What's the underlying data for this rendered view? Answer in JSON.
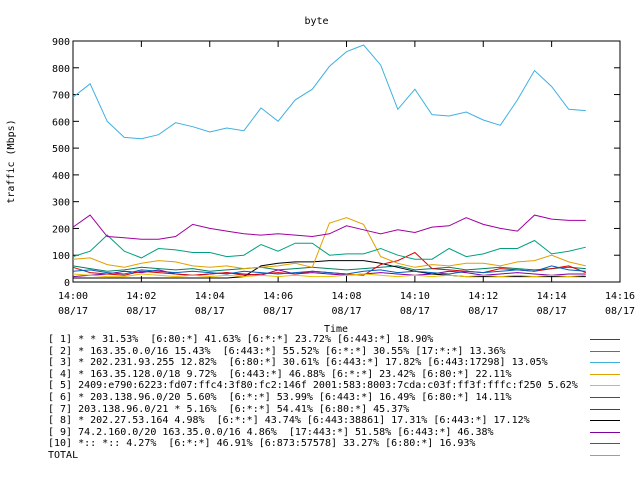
{
  "chart_data": {
    "type": "line",
    "title": "byte",
    "xlabel": "Time",
    "ylabel": "traffic (Mbps)",
    "ylim": [
      0,
      900
    ],
    "yticks": [
      0,
      100,
      200,
      300,
      400,
      500,
      600,
      700,
      800,
      900
    ],
    "xlim_minutes": [
      0,
      16
    ],
    "xticks": [
      {
        "time": "14:00",
        "date": "08/17",
        "minute": 0
      },
      {
        "time": "14:02",
        "date": "08/17",
        "minute": 2
      },
      {
        "time": "14:04",
        "date": "08/17",
        "minute": 4
      },
      {
        "time": "14:06",
        "date": "08/17",
        "minute": 6
      },
      {
        "time": "14:08",
        "date": "08/17",
        "minute": 8
      },
      {
        "time": "14:10",
        "date": "08/17",
        "minute": 10
      },
      {
        "time": "14:12",
        "date": "08/17",
        "minute": 12
      },
      {
        "time": "14:14",
        "date": "08/17",
        "minute": 14
      },
      {
        "time": "14:16",
        "date": "08/17",
        "minute": 16
      }
    ],
    "x_minutes": [
      0,
      0.5,
      1,
      1.5,
      2,
      2.5,
      3,
      3.5,
      4,
      4.5,
      5,
      5.5,
      6,
      6.5,
      7,
      7.5,
      8,
      8.5,
      9,
      9.5,
      10,
      10.5,
      11,
      11.5,
      12,
      12.5,
      13,
      13.5,
      14,
      14.5,
      15
    ],
    "grid": false,
    "series": [
      {
        "name": "[ 1] * * 31.53%  [6:80:*] 41.63% [6:*:*] 23.72% [6:443:*] 18.90%",
        "color": "#a000a0",
        "values": [
          205,
          250,
          170,
          165,
          160,
          160,
          170,
          215,
          200,
          190,
          180,
          175,
          180,
          175,
          170,
          180,
          210,
          195,
          180,
          195,
          185,
          205,
          210,
          240,
          215,
          200,
          190,
          250,
          235,
          230,
          230
        ]
      },
      {
        "name": "[ 2] * 163.35.0.0/16 15.43%  [6:443:*] 55.52% [6:*:*] 30.55% [17:*:*] 13.36%",
        "color": "#00a080",
        "values": [
          95,
          115,
          175,
          115,
          90,
          125,
          120,
          110,
          110,
          95,
          100,
          140,
          115,
          145,
          145,
          100,
          105,
          105,
          125,
          100,
          85,
          85,
          125,
          95,
          105,
          125,
          125,
          155,
          105,
          115,
          130
        ]
      },
      {
        "name": "[ 3] * 202.231.93.255 12.82%  [6:80:*] 30.61% [6:443:*] 17.82% [6:443:17298] 13.05%",
        "color": "#40b0e0",
        "values": [
          690,
          740,
          600,
          540,
          535,
          550,
          595,
          580,
          560,
          575,
          565,
          650,
          600,
          680,
          720,
          805,
          860,
          885,
          810,
          645,
          720,
          625,
          620,
          635,
          605,
          585,
          680,
          790,
          730,
          645,
          640
        ]
      },
      {
        "name": "[ 4] * 163.35.128.0/18 9.72%  [6:443:*] 46.88% [6:*:*] 23.42% [6:80:*] 22.11%",
        "color": "#e0a000",
        "values": [
          85,
          90,
          65,
          55,
          70,
          80,
          75,
          60,
          55,
          60,
          50,
          55,
          60,
          70,
          55,
          220,
          240,
          215,
          95,
          70,
          55,
          65,
          60,
          70,
          70,
          60,
          75,
          80,
          100,
          75,
          60
        ]
      },
      {
        "name": "[ 5] 2409:e790:6223:fd07:ffc4:3f80:fc2:146f 2001:583:8003:7cda:c03f:ff3f:fffc:f250 5.62%",
        "color": "#e8c000",
        "values": [
          30,
          25,
          20,
          20,
          30,
          25,
          20,
          25,
          20,
          25,
          20,
          25,
          20,
          25,
          20,
          20,
          25,
          30,
          25,
          20,
          25,
          20,
          25,
          20,
          25,
          20,
          25,
          20,
          25,
          20,
          25
        ]
      },
      {
        "name": "[ 6] * 203.138.96.0/20 5.60%  [6:*:*] 53.99% [6:443:*] 16.49% [6:80:*] 14.11%",
        "color": "#0060c0",
        "values": [
          40,
          45,
          35,
          30,
          45,
          40,
          35,
          40,
          35,
          30,
          40,
          35,
          30,
          35,
          40,
          35,
          30,
          40,
          45,
          35,
          40,
          35,
          30,
          40,
          35,
          40,
          45,
          40,
          60,
          45,
          40
        ]
      },
      {
        "name": "[ 7] 203.138.96.0/21 * 5.16%  [6:*:*] 54.41% [6:80:*] 45.37%",
        "color": "#e00000",
        "values": [
          55,
          35,
          30,
          25,
          40,
          35,
          30,
          25,
          30,
          35,
          25,
          30,
          35,
          30,
          40,
          35,
          30,
          25,
          65,
          80,
          110,
          50,
          45,
          40,
          35,
          50,
          45,
          40,
          50,
          60,
          35
        ]
      },
      {
        "name": "[ 8] * 202.27.53.164 4.98%  [6:*:*] 43.74% [6:443:38861] 17.31% [6:443:*] 17.12%",
        "color": "#000000",
        "values": [
          15,
          15,
          15,
          15,
          15,
          15,
          15,
          15,
          15,
          15,
          20,
          60,
          70,
          75,
          75,
          80,
          80,
          80,
          70,
          55,
          40,
          30,
          25,
          20,
          20,
          20,
          20,
          20,
          20,
          20,
          20
        ]
      },
      {
        "name": "[ 9] 74.2.160.0/20 163.35.0.0/16 4.86%  [17:443:*] 51.58% [6:443:*] 46.38%",
        "color": "#8000a0",
        "values": [
          20,
          25,
          30,
          40,
          35,
          45,
          30,
          25,
          30,
          35,
          30,
          25,
          45,
          30,
          35,
          30,
          25,
          30,
          35,
          30,
          25,
          30,
          40,
          35,
          25,
          30,
          35,
          30,
          25,
          30,
          30
        ]
      },
      {
        "name": "[10] *:: *:: 4.27%  [6:*:*] 46.91% [6:873:57578] 33.27% [6:80:*] 16.93%",
        "color": "#008060",
        "values": [
          60,
          50,
          40,
          45,
          55,
          50,
          45,
          50,
          40,
          45,
          50,
          55,
          45,
          50,
          55,
          50,
          45,
          50,
          55,
          60,
          45,
          50,
          55,
          45,
          50,
          55,
          50,
          45,
          50,
          55,
          50
        ]
      },
      {
        "name": "TOTAL",
        "color": "#40c0e0",
        "values": [
          0,
          0,
          0,
          0,
          0,
          0,
          0,
          0,
          0,
          0,
          0,
          0,
          0,
          0,
          0,
          0,
          0,
          0,
          0,
          0,
          0,
          0,
          0,
          0,
          0,
          0,
          0,
          0,
          0,
          0,
          0
        ]
      }
    ]
  }
}
